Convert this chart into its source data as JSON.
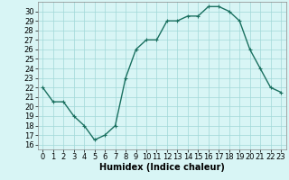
{
  "x": [
    0,
    1,
    2,
    3,
    4,
    5,
    6,
    7,
    8,
    9,
    10,
    11,
    12,
    13,
    14,
    15,
    16,
    17,
    18,
    19,
    20,
    21,
    22,
    23
  ],
  "y": [
    22,
    20.5,
    20.5,
    19,
    18,
    16.5,
    17,
    18,
    23,
    26,
    27,
    27,
    29,
    29,
    29.5,
    29.5,
    30.5,
    30.5,
    30,
    29,
    26,
    24,
    22,
    21.5
  ],
  "line_color": "#1a7060",
  "marker": "+",
  "bg_color": "#d8f5f5",
  "grid_color": "#a0d8d8",
  "xlabel": "Humidex (Indice chaleur)",
  "xlim": [
    -0.5,
    23.5
  ],
  "ylim": [
    15.5,
    31
  ],
  "xticks": [
    0,
    1,
    2,
    3,
    4,
    5,
    6,
    7,
    8,
    9,
    10,
    11,
    12,
    13,
    14,
    15,
    16,
    17,
    18,
    19,
    20,
    21,
    22,
    23
  ],
  "yticks": [
    16,
    17,
    18,
    19,
    20,
    21,
    22,
    23,
    24,
    25,
    26,
    27,
    28,
    29,
    30
  ],
  "xlabel_fontsize": 7,
  "tick_fontsize": 6,
  "linewidth": 1.0,
  "markersize": 3
}
